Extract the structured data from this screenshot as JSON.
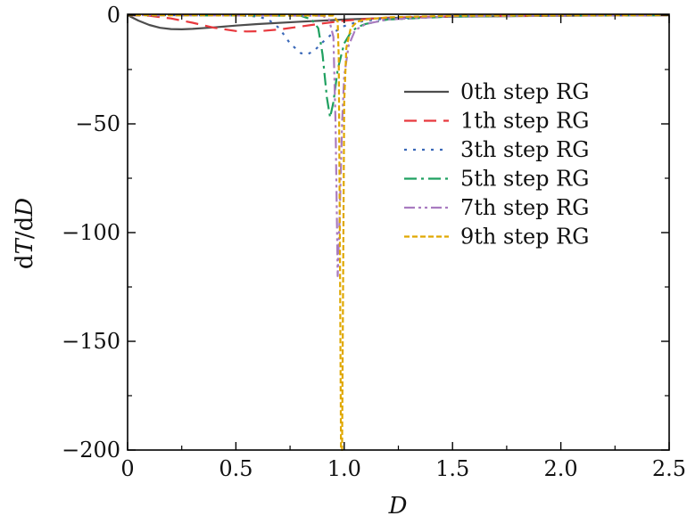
{
  "chart_data": {
    "type": "line",
    "xlabel": "D",
    "ylabel": "dT/dD",
    "ylabel_parts": [
      "d",
      "T",
      "/d",
      "D"
    ],
    "xlim": [
      0,
      2.5
    ],
    "ylim": [
      -200,
      0
    ],
    "xticks": [
      0,
      0.5,
      1.0,
      1.5,
      2.0,
      2.5
    ],
    "xtick_labels": [
      "0",
      "0.5",
      "1.0",
      "1.5",
      "2.0",
      "2.5"
    ],
    "yticks": [
      0,
      -50,
      -100,
      -150,
      -200
    ],
    "ytick_labels": [
      "0",
      "−50",
      "−100",
      "−150",
      "−200"
    ],
    "grid": false,
    "legend_position": "right",
    "series": [
      {
        "name": "0th step RG",
        "color": "#4d4d4d",
        "dash": "solid",
        "x": [
          0,
          0.05,
          0.1,
          0.15,
          0.2,
          0.25,
          0.3,
          0.4,
          0.5,
          0.6,
          0.8,
          1.0,
          1.2,
          1.5,
          2.0,
          2.5
        ],
        "y": [
          0,
          -2.5,
          -4.5,
          -5.8,
          -6.4,
          -6.5,
          -6.3,
          -5.6,
          -4.8,
          -4.1,
          -3.0,
          -2.0,
          -1.3,
          -0.7,
          -0.3,
          -0.1
        ]
      },
      {
        "name": "1th step RG",
        "color": "#e8383d",
        "dash": "dashed",
        "x": [
          0,
          0.1,
          0.2,
          0.3,
          0.4,
          0.5,
          0.55,
          0.6,
          0.7,
          0.8,
          0.9,
          1.0,
          1.1,
          1.2,
          1.5,
          2.0,
          2.5
        ],
        "y": [
          0,
          -0.3,
          -1.5,
          -3.5,
          -5.8,
          -7.3,
          -7.5,
          -7.4,
          -6.6,
          -5.2,
          -3.8,
          -2.6,
          -1.8,
          -1.2,
          -0.5,
          -0.2,
          0
        ]
      },
      {
        "name": "3th step RG",
        "color": "#3a68b8",
        "dash": "dotted",
        "x": [
          0,
          0.5,
          0.6,
          0.65,
          0.7,
          0.75,
          0.8,
          0.83,
          0.86,
          0.9,
          0.95,
          1.0,
          1.05,
          1.1,
          1.2,
          1.5,
          2.0,
          2.5
        ],
        "y": [
          0,
          -0.1,
          -0.6,
          -2,
          -6,
          -13,
          -17.5,
          -18,
          -16.5,
          -12.5,
          -8,
          -5,
          -3.5,
          -2.5,
          -1.5,
          -0.5,
          -0.2,
          0
        ]
      },
      {
        "name": "5th step RG",
        "color": "#1fa060",
        "dash": "dashdot",
        "x": [
          0,
          0.8,
          0.85,
          0.88,
          0.9,
          0.92,
          0.935,
          0.95,
          0.97,
          1.0,
          1.03,
          1.06,
          1.1,
          1.2,
          1.5,
          2.0,
          2.5
        ],
        "y": [
          0,
          -0.3,
          -2,
          -6,
          -18,
          -38,
          -47,
          -40,
          -25,
          -13,
          -8,
          -5.5,
          -4,
          -2,
          -0.6,
          -0.2,
          0
        ]
      },
      {
        "name": "7th step RG",
        "color": "#a97bc0",
        "dash": "dashdotdot",
        "x": [
          0,
          0.9,
          0.93,
          0.95,
          0.96,
          0.97,
          0.98,
          0.99,
          1.0,
          1.02,
          1.05,
          1.1,
          1.2,
          1.5,
          2.5
        ],
        "y": [
          0,
          -0.3,
          -2,
          -10,
          -50,
          -120,
          -90,
          -50,
          -28,
          -14,
          -7,
          -4,
          -2,
          -0.5,
          0
        ]
      },
      {
        "name": "9th step RG",
        "color": "#e0a800",
        "dash": "shortdash",
        "x": [
          0,
          0.95,
          0.97,
          0.975,
          0.98,
          0.985,
          0.99,
          0.995,
          1.0,
          1.01,
          1.03,
          1.06,
          1.1,
          1.2,
          1.5,
          2.5
        ],
        "y": [
          0,
          -0.2,
          -3,
          -20,
          -100,
          -200,
          -200,
          -120,
          -40,
          -15,
          -6,
          -3,
          -2,
          -1,
          -0.3,
          0
        ]
      }
    ]
  }
}
